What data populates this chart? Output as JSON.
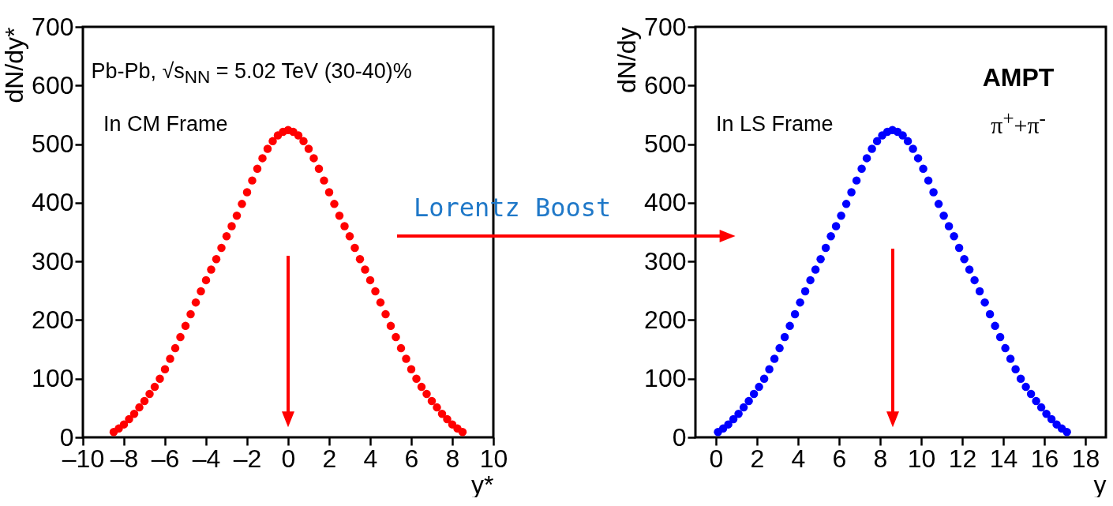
{
  "chart_data": [
    {
      "type": "scatter",
      "xlabel": "y*",
      "ylabel": "dN/dy*",
      "marker": "circle",
      "annotations": [
        "Pb-Pb, √s$_{NN}$ = 5.02 TeV (30-40)%",
        "In CM Frame",
        "Lorentz Boost"
      ],
      "xlim": [
        -10,
        10
      ],
      "ylim": [
        0,
        700
      ],
      "xticks": [
        {
          "value": -10,
          "label": "–10"
        },
        {
          "value": -8,
          "label": "–8"
        },
        {
          "value": -6,
          "label": "–6"
        },
        {
          "value": -4,
          "label": "–4"
        },
        {
          "value": -2,
          "label": "–2"
        },
        0,
        2,
        4,
        6,
        8,
        10
      ],
      "yticks": [
        0,
        100,
        200,
        300,
        400,
        500,
        600,
        700
      ],
      "series": [
        {
          "color": "#ff0000",
          "x": [
            -8.5,
            -8.25,
            -8,
            -7.75,
            -7.5,
            -7.25,
            -7,
            -6.75,
            -6.5,
            -6.25,
            -6,
            -5.75,
            -5.5,
            -5.25,
            -5,
            -4.75,
            -4.5,
            -4.25,
            -4,
            -3.75,
            -3.5,
            -3.25,
            -3,
            -2.75,
            -2.5,
            -2.25,
            -2,
            -1.75,
            -1.5,
            -1.25,
            -1,
            -0.75,
            -0.5,
            -0.25,
            0,
            0.25,
            0.5,
            0.75,
            1,
            1.25,
            1.5,
            1.75,
            2,
            2.25,
            2.5,
            2.75,
            3,
            3.25,
            3.5,
            3.75,
            4,
            4.25,
            4.5,
            4.75,
            5,
            5.25,
            5.5,
            5.75,
            6,
            6.25,
            6.5,
            6.75,
            7,
            7.25,
            7.5,
            7.75,
            8,
            8.25,
            8.5
          ],
          "values": [
            9,
            15,
            22,
            31,
            40,
            51,
            62,
            74,
            86,
            100,
            116,
            134,
            152,
            171,
            190,
            210,
            230,
            249,
            268,
            286,
            304,
            323,
            343,
            360,
            378,
            398,
            418,
            438,
            458,
            476,
            492,
            505,
            515,
            521,
            524,
            521,
            515,
            505,
            492,
            476,
            458,
            438,
            418,
            398,
            378,
            360,
            343,
            323,
            304,
            286,
            268,
            249,
            230,
            210,
            190,
            171,
            152,
            134,
            116,
            100,
            86,
            74,
            62,
            51,
            40,
            31,
            22,
            15,
            9
          ]
        }
      ]
    },
    {
      "type": "scatter",
      "xlabel": "y",
      "ylabel": "dN/dy",
      "marker": "circle",
      "annotations": [
        "AMPT",
        "π$^{+}$+π$^{-}$",
        "In LS Frame"
      ],
      "xlim": [
        -1,
        19
      ],
      "ylim": [
        0,
        700
      ],
      "xticks": [
        0,
        2,
        4,
        6,
        8,
        10,
        12,
        14,
        16,
        18
      ],
      "yticks": [
        0,
        100,
        200,
        300,
        400,
        500,
        600,
        700
      ],
      "series": [
        {
          "color": "#0000ff",
          "x": [
            0.1,
            0.35,
            0.6,
            0.85,
            1.1,
            1.35,
            1.6,
            1.85,
            2.1,
            2.35,
            2.6,
            2.85,
            3.1,
            3.35,
            3.6,
            3.85,
            4.1,
            4.35,
            4.6,
            4.85,
            5.1,
            5.35,
            5.6,
            5.85,
            6.1,
            6.35,
            6.6,
            6.85,
            7.1,
            7.35,
            7.6,
            7.85,
            8.1,
            8.35,
            8.6,
            8.85,
            9.1,
            9.35,
            9.6,
            9.85,
            10.1,
            10.35,
            10.6,
            10.85,
            11.1,
            11.35,
            11.6,
            11.85,
            12.1,
            12.35,
            12.6,
            12.85,
            13.1,
            13.35,
            13.6,
            13.85,
            14.1,
            14.35,
            14.6,
            14.85,
            15.1,
            15.35,
            15.6,
            15.85,
            16.1,
            16.35,
            16.6,
            16.85,
            17.1
          ],
          "values": [
            9,
            15,
            22,
            31,
            40,
            51,
            62,
            74,
            86,
            100,
            116,
            134,
            152,
            171,
            190,
            210,
            230,
            249,
            268,
            286,
            304,
            323,
            343,
            360,
            378,
            398,
            418,
            438,
            458,
            476,
            492,
            505,
            515,
            521,
            524,
            521,
            515,
            505,
            492,
            476,
            458,
            438,
            418,
            398,
            378,
            360,
            343,
            323,
            304,
            286,
            268,
            249,
            230,
            210,
            190,
            171,
            152,
            134,
            116,
            100,
            86,
            74,
            62,
            51,
            40,
            31,
            22,
            15,
            9
          ]
        }
      ]
    }
  ]
}
